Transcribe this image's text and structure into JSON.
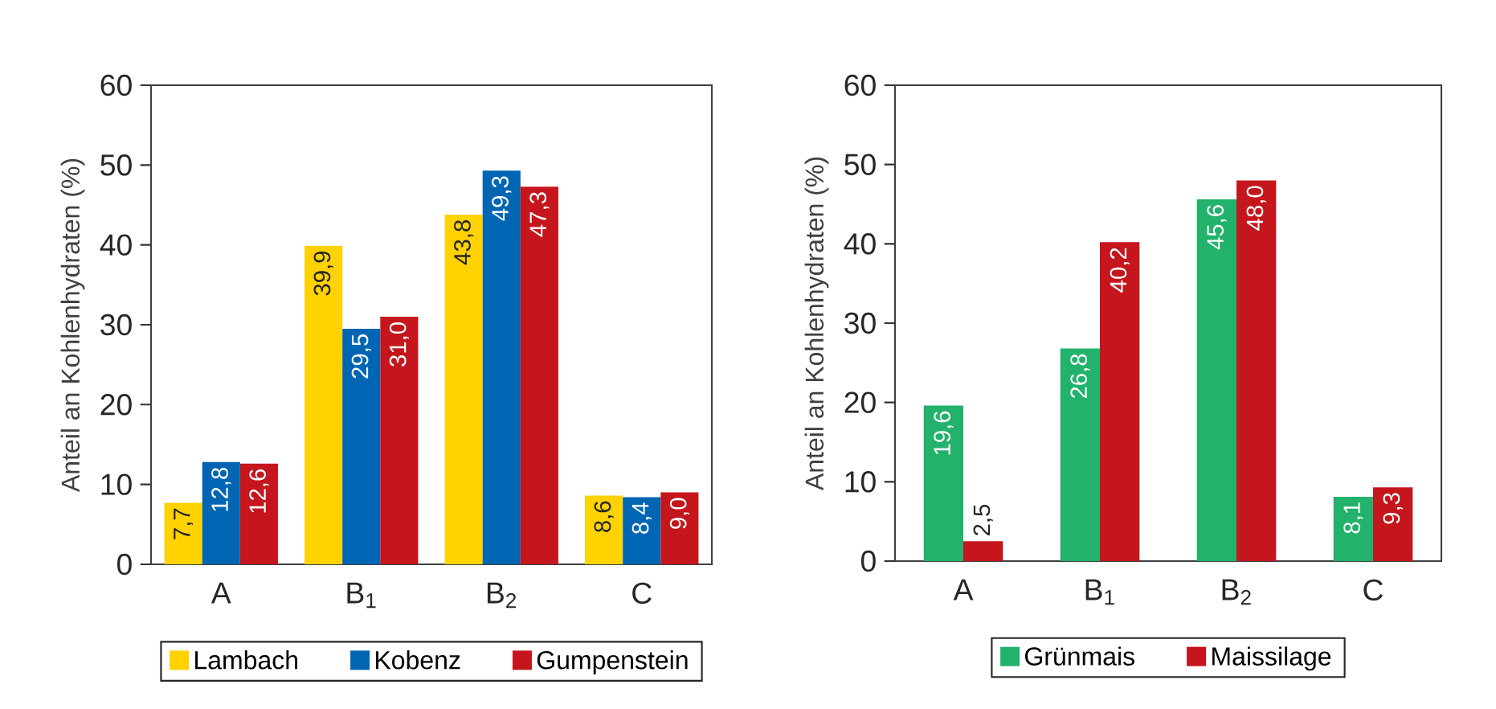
{
  "chart_data": [
    {
      "type": "bar",
      "ylabel": "Anteil an Kohlenhydraten (%)",
      "categories": [
        "A",
        "B$_{1}$",
        "B$_{2}$",
        "C"
      ],
      "ylim": [
        0,
        60
      ],
      "yticks": [
        0,
        10,
        20,
        30,
        40,
        50,
        60
      ],
      "legend": "bottom",
      "series": [
        {
          "name": "Lambach",
          "color": "#ffd200",
          "values": [
            7.7,
            39.9,
            43.8,
            8.6
          ],
          "value_labels": [
            "7,7",
            "39,9",
            "43,8",
            "8,6"
          ]
        },
        {
          "name": "Kobenz",
          "color": "#0066b3",
          "values": [
            12.8,
            29.5,
            49.3,
            8.4
          ],
          "value_labels": [
            "12,8",
            "29,5",
            "49,3",
            "8,4"
          ]
        },
        {
          "name": "Gumpenstein",
          "color": "#c4161c",
          "values": [
            12.6,
            31.0,
            47.3,
            9.0
          ],
          "value_labels": [
            "12,6",
            "31,0",
            "47,3",
            "9,0"
          ]
        }
      ]
    },
    {
      "type": "bar",
      "ylabel": "Anteil an Kohlenhydraten (%)",
      "categories": [
        "A",
        "B$_{1}$",
        "B$_{2}$",
        "C"
      ],
      "ylim": [
        0,
        60
      ],
      "yticks": [
        0,
        10,
        20,
        30,
        40,
        50,
        60
      ],
      "legend": "bottom",
      "series": [
        {
          "name": "Grünmais",
          "color": "#22b26b",
          "values": [
            19.6,
            26.8,
            45.6,
            8.1
          ],
          "value_labels": [
            "19,6",
            "26,8",
            "45,6",
            "8,1"
          ]
        },
        {
          "name": "Maissilage",
          "color": "#c4161c",
          "values": [
            2.5,
            40.2,
            48.0,
            9.3
          ],
          "value_labels": [
            "2,5",
            "40,2",
            "48,0",
            "9,3"
          ]
        }
      ]
    }
  ]
}
